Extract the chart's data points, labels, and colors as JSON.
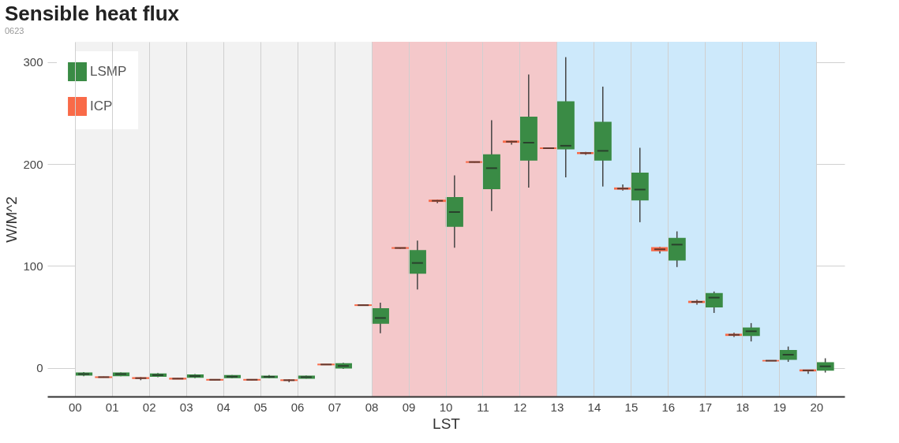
{
  "chart_data": {
    "type": "box",
    "title": "Sensible heat flux",
    "subtitle": "0623",
    "xlabel": "LST",
    "ylabel": "W/M^2",
    "categories": [
      "00",
      "01",
      "02",
      "03",
      "04",
      "05",
      "06",
      "07",
      "08",
      "09",
      "10",
      "11",
      "12",
      "13",
      "14",
      "15",
      "16",
      "17",
      "18",
      "19",
      "20"
    ],
    "ylim": [
      -28,
      320
    ],
    "yticks": [
      0,
      100,
      200,
      300
    ],
    "grid": true,
    "legend": "top left",
    "bands": [
      {
        "axis": "x",
        "from": "00",
        "to": "08",
        "color": "#f2f2f2"
      },
      {
        "axis": "x",
        "from": "08",
        "to": "13",
        "color": "#f4c8ca"
      },
      {
        "axis": "x",
        "from": "13",
        "to": "20",
        "color": "#cde9fb"
      }
    ],
    "series": [
      {
        "name": "LSMP",
        "color": "#3a8b45",
        "boxes": [
          {
            "low": -8,
            "q1": -7,
            "median": -6,
            "q3": -5,
            "high": -4
          },
          {
            "low": -8,
            "q1": -7.5,
            "median": -6,
            "q3": -5,
            "high": -4.5
          },
          {
            "low": -9,
            "q1": -8,
            "median": -7,
            "q3": -6,
            "high": -5
          },
          {
            "low": -10,
            "q1": -9,
            "median": -8,
            "q3": -7,
            "high": -6
          },
          {
            "low": -10,
            "q1": -9.5,
            "median": -8.5,
            "q3": -7.5,
            "high": -7
          },
          {
            "low": -10,
            "q1": -9.5,
            "median": -8.7,
            "q3": -8,
            "high": -7
          },
          {
            "low": -10.5,
            "q1": -10,
            "median": -9,
            "q3": -8,
            "high": -7.5
          },
          {
            "low": -1,
            "q1": 0,
            "median": 2,
            "q3": 4,
            "high": 5
          },
          {
            "low": 34,
            "q1": 44,
            "median": 49,
            "q3": 58,
            "high": 64
          },
          {
            "low": 77,
            "q1": 93,
            "median": 103,
            "q3": 115,
            "high": 125
          },
          {
            "low": 118,
            "q1": 139,
            "median": 153,
            "q3": 167,
            "high": 189
          },
          {
            "low": 154,
            "q1": 176,
            "median": 196,
            "q3": 209,
            "high": 243
          },
          {
            "low": 177,
            "q1": 204,
            "median": 221,
            "q3": 246,
            "high": 288
          },
          {
            "low": 187,
            "q1": 215,
            "median": 218,
            "q3": 261,
            "high": 305
          },
          {
            "low": 178,
            "q1": 204,
            "median": 213,
            "q3": 241,
            "high": 276
          },
          {
            "low": 143,
            "q1": 165,
            "median": 175,
            "q3": 191,
            "high": 216
          },
          {
            "low": 99,
            "q1": 106,
            "median": 121,
            "q3": 127,
            "high": 134
          },
          {
            "low": 54,
            "q1": 60,
            "median": 69,
            "q3": 73,
            "high": 75
          },
          {
            "low": 26,
            "q1": 32,
            "median": 36,
            "q3": 39,
            "high": 44
          },
          {
            "low": 6,
            "q1": 8.5,
            "median": 13,
            "q3": 17,
            "high": 21
          },
          {
            "low": -4.5,
            "q1": -2,
            "median": 1.6,
            "q3": 5,
            "high": 9.5
          }
        ]
      },
      {
        "name": "ICP",
        "color": "#f96a48",
        "boxes": [
          null,
          {
            "low": -9.5,
            "q1": -9.2,
            "median": -9,
            "q3": -8.8,
            "high": -8.5
          },
          {
            "low": -12,
            "q1": -10.3,
            "median": -10,
            "q3": -9.7,
            "high": -9
          },
          {
            "low": -11,
            "q1": -10.8,
            "median": -10.5,
            "q3": -10.2,
            "high": -10
          },
          {
            "low": -12,
            "q1": -11.8,
            "median": -11.6,
            "q3": -11.4,
            "high": -11
          },
          {
            "low": -12,
            "q1": -11.8,
            "median": -11.6,
            "q3": -11.4,
            "high": -11
          },
          {
            "low": -14,
            "q1": -12.2,
            "median": -12,
            "q3": -11.8,
            "high": -11
          },
          {
            "low": 3,
            "q1": 3.2,
            "median": 3.4,
            "q3": 3.6,
            "high": 3.8
          },
          {
            "low": 61,
            "q1": 61.4,
            "median": 61.6,
            "q3": 61.8,
            "high": 62
          },
          {
            "low": 117,
            "q1": 117.5,
            "median": 117.7,
            "q3": 117.9,
            "high": 118
          },
          {
            "low": 161.6,
            "q1": 163.5,
            "median": 164,
            "q3": 164.5,
            "high": 165
          },
          {
            "low": 201.5,
            "q1": 201.8,
            "median": 202,
            "q3": 202.2,
            "high": 202.5
          },
          {
            "low": 219,
            "q1": 221.5,
            "median": 222,
            "q3": 222.5,
            "high": 223
          },
          {
            "low": 215,
            "q1": 215.4,
            "median": 215.6,
            "q3": 215.8,
            "high": 216
          },
          {
            "low": 209,
            "q1": 210.4,
            "median": 210.8,
            "q3": 211.2,
            "high": 212
          },
          {
            "low": 174,
            "q1": 175.5,
            "median": 176,
            "q3": 176.5,
            "high": 180
          },
          {
            "low": 112.4,
            "q1": 115,
            "median": 116.4,
            "q3": 117.9,
            "high": 119
          },
          {
            "low": 62,
            "q1": 64.3,
            "median": 64.8,
            "q3": 65.3,
            "high": 67
          },
          {
            "low": 30.4,
            "q1": 32,
            "median": 32.5,
            "q3": 33,
            "high": 34.7
          },
          {
            "low": 6.8,
            "q1": 7,
            "median": 7.1,
            "q3": 7.2,
            "high": 7.4
          },
          {
            "low": -5.8,
            "q1": -2.8,
            "median": -2.4,
            "q3": -2,
            "high": -1.8
          }
        ]
      }
    ]
  }
}
